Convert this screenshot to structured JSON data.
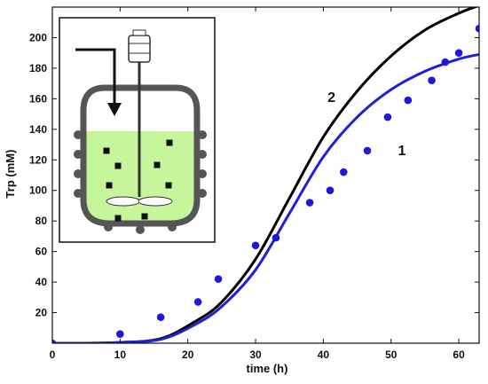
{
  "chart_data": {
    "type": "line",
    "xlabel": "time (h)",
    "ylabel": "Trp (mM)",
    "xlim": [
      0,
      63
    ],
    "ylim": [
      0,
      220
    ],
    "x_ticks": [
      0,
      10,
      20,
      30,
      40,
      50,
      60
    ],
    "y_ticks": [
      20,
      40,
      60,
      80,
      100,
      120,
      140,
      160,
      180,
      200
    ],
    "grid": false,
    "series": [
      {
        "name": "2",
        "kind": "line",
        "color": "#000000",
        "x": [
          0,
          5,
          10,
          16,
          21,
          25,
          30,
          35,
          40,
          45,
          50,
          55,
          60,
          63
        ],
        "y": [
          0,
          0,
          0.5,
          3,
          14,
          27,
          55,
          95,
          135,
          165,
          188,
          205,
          216,
          221
        ]
      },
      {
        "name": "1",
        "kind": "line",
        "color": "#1f1fd6",
        "x": [
          0,
          5,
          10,
          16,
          21,
          25,
          30,
          35,
          40,
          45,
          50,
          55,
          60,
          63
        ],
        "y": [
          0,
          0,
          0.5,
          2.5,
          12,
          24,
          48,
          85,
          122,
          148,
          166,
          178,
          186,
          189
        ]
      },
      {
        "name": "",
        "kind": "scatter",
        "color": "#1a1ad8",
        "x": [
          0,
          10,
          16,
          21.5,
          24.5,
          30,
          33,
          38,
          41,
          43,
          46.5,
          49.5,
          52.5,
          56,
          58,
          60,
          63
        ],
        "y": [
          0,
          6,
          17,
          27,
          42,
          64,
          69,
          92,
          100,
          112,
          126,
          148,
          159,
          172,
          184,
          190,
          206
        ]
      }
    ]
  },
  "inset": {
    "fill_color": "#c6f59b",
    "vessel_color": "#555555"
  }
}
